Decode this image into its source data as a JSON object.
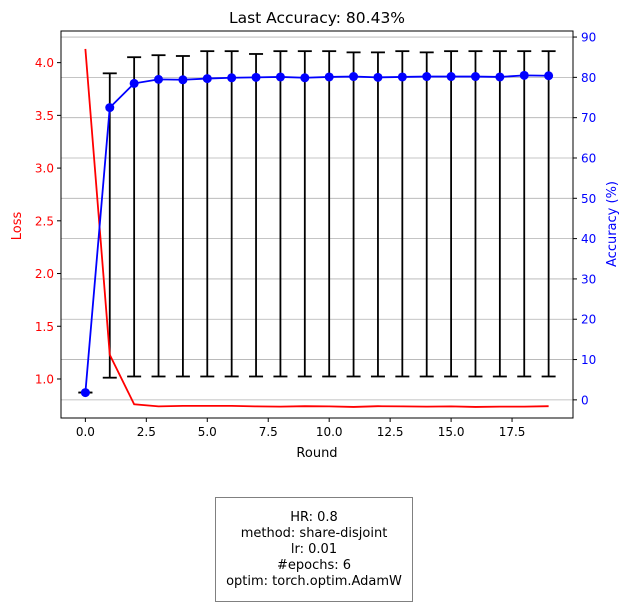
{
  "chart_data": {
    "type": "line",
    "title": "Last Accuracy: 80.43%",
    "xlabel": "Round",
    "ylabel_left": "Loss",
    "ylabel_right": "Accuracy (%)",
    "x": [
      0,
      1,
      2,
      3,
      4,
      5,
      6,
      7,
      8,
      9,
      10,
      11,
      12,
      13,
      14,
      15,
      16,
      17,
      18,
      19
    ],
    "xlim": [
      -1,
      20
    ],
    "xticks": [
      "0.0",
      "2.5",
      "5.0",
      "7.5",
      "10.0",
      "12.5",
      "15.0",
      "17.5"
    ],
    "ylim_left": [
      0.63,
      4.3
    ],
    "yticks_left": [
      "1.0",
      "1.5",
      "2.0",
      "2.5",
      "3.0",
      "3.5",
      "4.0"
    ],
    "ylim_right": [
      -4.5,
      91.5
    ],
    "yticks_right": [
      "0",
      "10",
      "20",
      "30",
      "40",
      "50",
      "60",
      "70",
      "80",
      "90"
    ],
    "grid": true,
    "left_axis_color": "#ff0000",
    "right_axis_color": "#0000ff",
    "series": [
      {
        "name": "Loss",
        "axis": "left",
        "color": "#ff0000",
        "values": [
          4.13,
          1.23,
          0.76,
          0.74,
          0.745,
          0.745,
          0.745,
          0.74,
          0.738,
          0.742,
          0.74,
          0.735,
          0.742,
          0.74,
          0.738,
          0.74,
          0.735,
          0.738,
          0.738,
          0.742
        ]
      },
      {
        "name": "Accuracy",
        "axis": "right",
        "color": "#0000ff",
        "marker": "circle",
        "values": [
          1.8,
          72.5,
          78.5,
          79.5,
          79.4,
          79.7,
          79.9,
          80.0,
          80.1,
          79.9,
          80.1,
          80.2,
          80.0,
          80.1,
          80.2,
          80.2,
          80.2,
          80.1,
          80.5,
          80.4
        ],
        "error_low": [
          1.8,
          5.5,
          5.8,
          5.8,
          5.8,
          5.8,
          5.8,
          5.8,
          5.8,
          5.8,
          5.8,
          5.8,
          5.8,
          5.8,
          5.8,
          5.8,
          5.8,
          5.8,
          5.8,
          5.8
        ],
        "error_high": [
          1.8,
          81.0,
          85.0,
          85.5,
          85.3,
          86.5,
          86.5,
          85.8,
          86.5,
          86.5,
          86.5,
          86.2,
          86.2,
          86.5,
          86.2,
          86.5,
          86.5,
          86.5,
          86.5,
          86.5
        ],
        "error_color": "#000000"
      }
    ]
  },
  "info": {
    "line1": "HR: 0.8",
    "line2": "method: share-disjoint",
    "line3": "lr: 0.01",
    "line4": "#epochs: 6",
    "line5": "optim: torch.optim.AdamW"
  }
}
